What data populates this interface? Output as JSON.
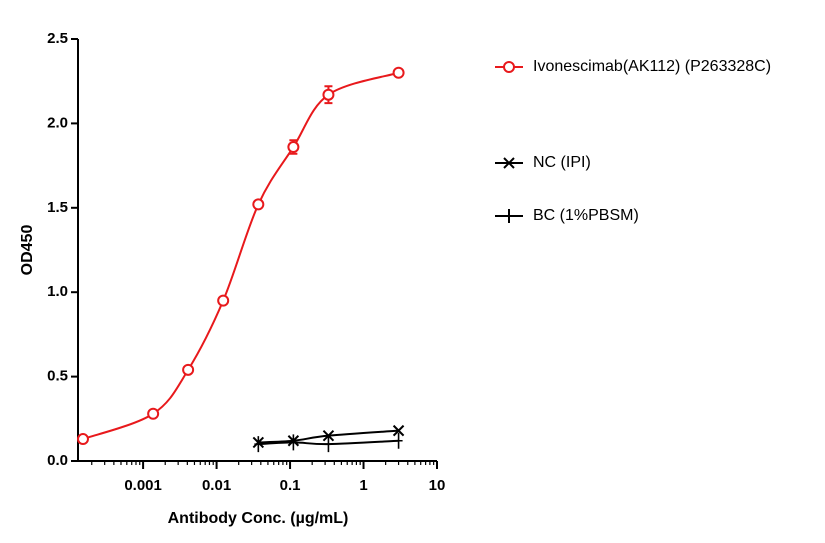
{
  "chart_data": {
    "type": "scatter",
    "x_label": "Antibody Conc. (µg/mL)",
    "y_label": "OD450",
    "xscale": "log",
    "xlim": [
      0.00013,
      10
    ],
    "xticks": [
      0.001,
      0.01,
      0.1,
      1,
      10
    ],
    "minor_ticks": true,
    "ylim": [
      0,
      2.5
    ],
    "yticks": [
      {
        "value": 0,
        "label": "0.0"
      },
      0.5,
      {
        "value": 1,
        "label": "1.0"
      },
      1.5,
      {
        "value": 2,
        "label": "2.0"
      },
      2.5
    ],
    "legend": "right",
    "series": [
      {
        "name": "Ivonescimab(AK112) (P263328C)",
        "color": "#e8191c",
        "marker": "circle",
        "x": [
          0.000152,
          0.00137,
          0.0041,
          0.0123,
          0.037,
          0.111,
          0.333,
          3
        ],
        "values": [
          0.13,
          0.28,
          0.54,
          0.95,
          1.52,
          1.86,
          2.17,
          2.3
        ],
        "errors": [
          null,
          null,
          null,
          null,
          null,
          0.04,
          0.05,
          null
        ]
      },
      {
        "name": "NC (IPI)",
        "color": "#000000",
        "marker": "cross",
        "x": [
          0.037,
          0.111,
          0.333,
          3
        ],
        "values": [
          0.11,
          0.12,
          0.15,
          0.18
        ]
      },
      {
        "name": "BC (1%PBSM)",
        "color": "#000000",
        "marker": "plus",
        "x": [
          0.037,
          0.111,
          0.333,
          3
        ],
        "values": [
          0.1,
          0.11,
          0.1,
          0.12
        ]
      }
    ]
  }
}
